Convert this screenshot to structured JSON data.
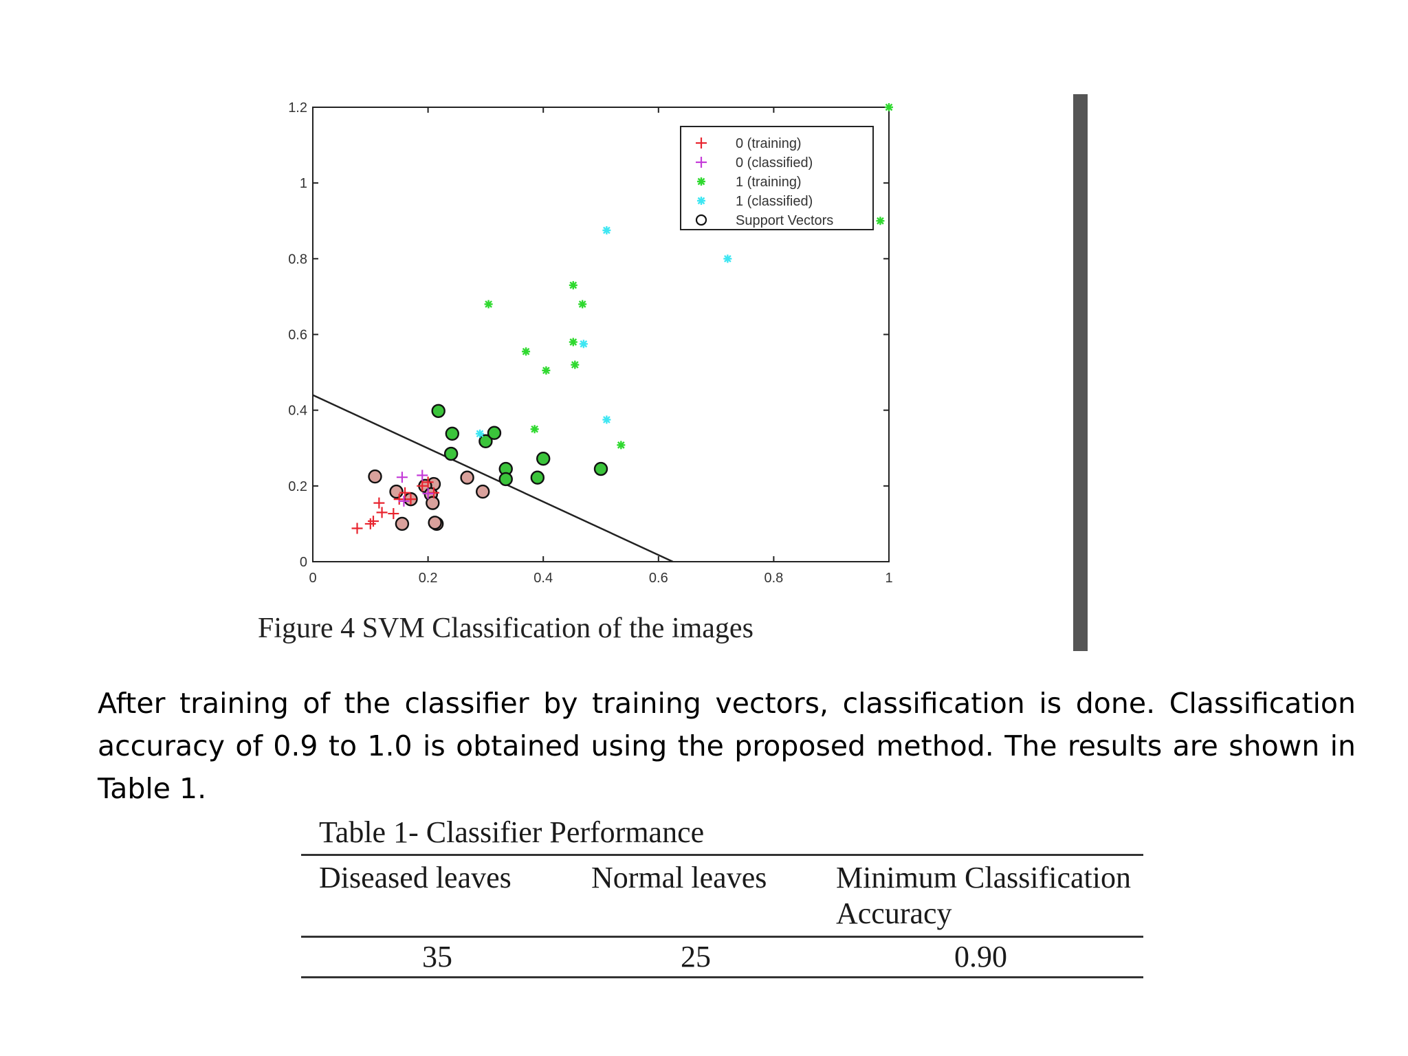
{
  "figure": {
    "caption": "Figure 4 SVM Classification of the images"
  },
  "chart_data": {
    "type": "scatter",
    "xlim": [
      0,
      1
    ],
    "ylim": [
      0,
      1.2
    ],
    "xticks": [
      "0",
      "0.2",
      "0.4",
      "0.6",
      "0.8",
      "1"
    ],
    "yticks": [
      "0",
      "0.2",
      "0.4",
      "0.6",
      "0.8",
      "1",
      "1.2"
    ],
    "grid": false,
    "legend_position": "top-right",
    "colors": {
      "class0_training": "#e8242f",
      "class0_classified": "#c43bd8",
      "class1_training": "#2fd92f",
      "class1_classified": "#3ee6f2",
      "support_vector": "#111111",
      "support_vector_fill_1": "#3bc43b",
      "support_vector_fill_0": "#d9a19c",
      "decision_line": "#222222"
    },
    "series": [
      {
        "name": "0 (training)",
        "marker": "plus",
        "points": [
          [
            0.077,
            0.088
          ],
          [
            0.1,
            0.1
          ],
          [
            0.105,
            0.107
          ],
          [
            0.115,
            0.155
          ],
          [
            0.12,
            0.13
          ],
          [
            0.14,
            0.127
          ],
          [
            0.15,
            0.165
          ],
          [
            0.16,
            0.182
          ],
          [
            0.17,
            0.165
          ],
          [
            0.19,
            0.2
          ],
          [
            0.2,
            0.21
          ],
          [
            0.21,
            0.182
          ]
        ]
      },
      {
        "name": "0 (classified)",
        "marker": "plus",
        "points": [
          [
            0.155,
            0.223
          ],
          [
            0.158,
            0.16
          ],
          [
            0.19,
            0.228
          ],
          [
            0.2,
            0.18
          ]
        ]
      },
      {
        "name": "1 (training)",
        "marker": "star",
        "points": [
          [
            0.305,
            0.68
          ],
          [
            0.37,
            0.555
          ],
          [
            0.405,
            0.505
          ],
          [
            0.385,
            0.35
          ],
          [
            0.452,
            0.73
          ],
          [
            0.468,
            0.68
          ],
          [
            0.452,
            0.58
          ],
          [
            0.455,
            0.52
          ],
          [
            0.535,
            0.308
          ],
          [
            1.0,
            1.2
          ],
          [
            0.985,
            0.9
          ]
        ]
      },
      {
        "name": "1 (classified)",
        "marker": "star",
        "points": [
          [
            0.51,
            0.875
          ],
          [
            0.72,
            0.8
          ],
          [
            0.47,
            0.575
          ],
          [
            0.51,
            0.375
          ],
          [
            0.29,
            0.338
          ]
        ]
      },
      {
        "name": "Support Vectors",
        "marker": "circle",
        "points": [
          [
            0.108,
            0.225
          ],
          [
            0.155,
            0.1
          ],
          [
            0.215,
            0.1
          ],
          [
            0.212,
            0.103
          ],
          [
            0.21,
            0.205
          ],
          [
            0.218,
            0.398
          ],
          [
            0.242,
            0.338
          ],
          [
            0.24,
            0.285
          ],
          [
            0.295,
            0.185
          ],
          [
            0.3,
            0.318
          ],
          [
            0.315,
            0.34
          ],
          [
            0.39,
            0.222
          ],
          [
            0.5,
            0.245
          ],
          [
            0.145,
            0.185
          ],
          [
            0.17,
            0.165
          ],
          [
            0.195,
            0.2
          ],
          [
            0.205,
            0.178
          ],
          [
            0.208,
            0.155
          ],
          [
            0.268,
            0.222
          ],
          [
            0.335,
            0.245
          ],
          [
            0.335,
            0.218
          ],
          [
            0.4,
            0.272
          ]
        ]
      }
    ],
    "decision_boundary": [
      [
        0,
        0.44
      ],
      [
        0.625,
        0
      ]
    ]
  },
  "body_text": {
    "line1": "After training of the classifier by training vectors, classification is done. Classification",
    "line2": "accuracy of 0.9 to 1.0 is obtained using the proposed method. The results are shown in",
    "line3": "Table 1."
  },
  "table": {
    "caption": "Table 1- Classifier Performance",
    "headers": [
      "Diseased leaves",
      "Normal leaves",
      "Minimum  Classification Accuracy"
    ],
    "rows": [
      [
        "35",
        "25",
        "0.90"
      ]
    ]
  }
}
